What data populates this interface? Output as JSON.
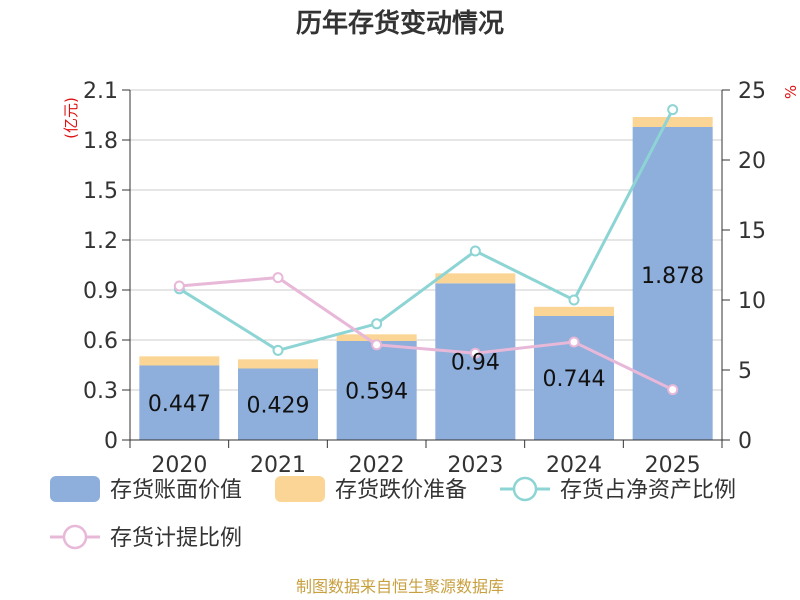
{
  "chart_data": {
    "type": "bar",
    "title": "历年存货变动情况",
    "left_unit": "(亿元)",
    "right_unit": "%",
    "categories": [
      "2020",
      "2021",
      "2022",
      "2023",
      "2024",
      "2025"
    ],
    "left_axis": {
      "min": 0,
      "max": 2.1,
      "ticks": [
        "0",
        "0.3",
        "0.6",
        "0.9",
        "1.2",
        "1.5",
        "1.8",
        "2.1"
      ]
    },
    "right_axis": {
      "min": 0,
      "max": 25,
      "ticks": [
        "0",
        "5",
        "10",
        "15",
        "20",
        "25"
      ]
    },
    "series": [
      {
        "name": "存货账面价值",
        "kind": "bar",
        "axis": "left",
        "color": "#8eaedb",
        "values": [
          0.447,
          0.429,
          0.594,
          0.94,
          0.744,
          1.878
        ],
        "labels": [
          "0.447",
          "0.429",
          "0.594",
          "0.94",
          "0.744",
          "1.878"
        ]
      },
      {
        "name": "存货跌价准备",
        "kind": "bar-stack",
        "axis": "left",
        "color": "#fbd595",
        "values": [
          0.055,
          0.055,
          0.04,
          0.06,
          0.055,
          0.06
        ]
      },
      {
        "name": "存货占净资产比例",
        "kind": "line",
        "axis": "right",
        "color": "#8dd4d5",
        "values": [
          10.8,
          6.4,
          8.3,
          13.5,
          10.0,
          23.6
        ]
      },
      {
        "name": "存货计提比例",
        "kind": "line",
        "axis": "right",
        "color": "#e8b8d8",
        "values": [
          11.0,
          11.6,
          6.8,
          6.2,
          7.0,
          3.6
        ]
      }
    ],
    "grid": true,
    "legend": "bottom"
  },
  "footer": {
    "source": "制图数据来自恒生聚源数据库"
  }
}
